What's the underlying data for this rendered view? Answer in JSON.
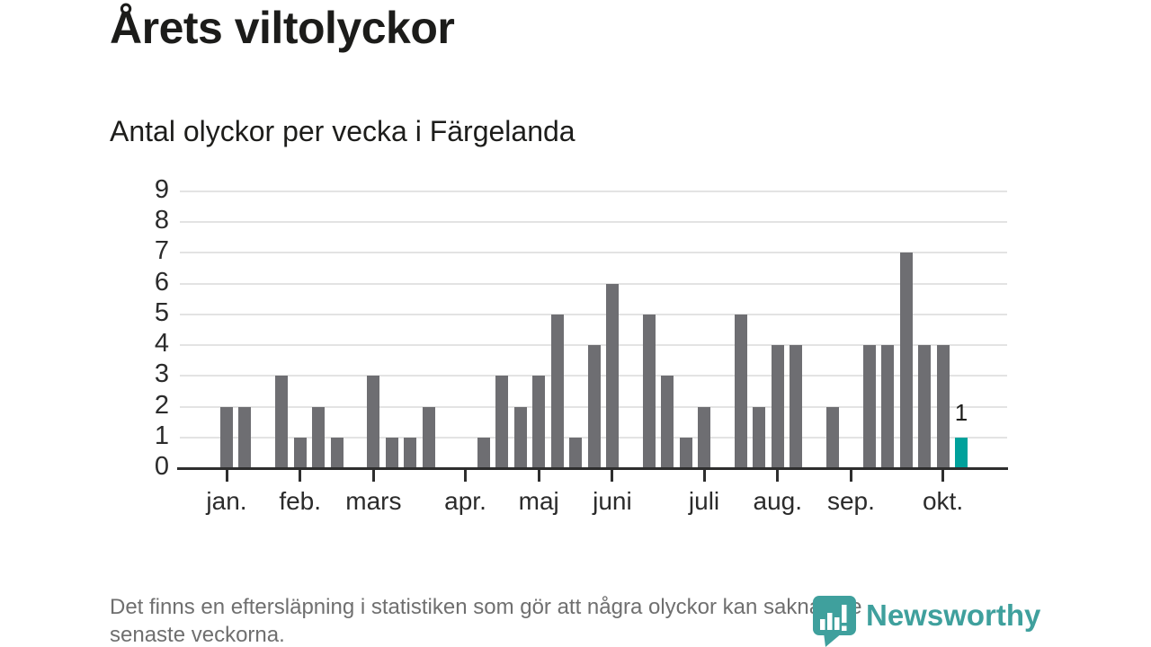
{
  "header": {
    "title": "Årets viltolyckor",
    "subtitle": "Antal olyckor per vecka i Färgelanda"
  },
  "chart_data": {
    "type": "bar",
    "title": "Årets viltolyckor",
    "subtitle": "Antal olyckor per vecka i Färgelanda",
    "xlabel": "",
    "ylabel": "",
    "ylim": [
      0,
      9
    ],
    "yticks": [
      "0",
      "1",
      "2",
      "3",
      "4",
      "5",
      "6",
      "7",
      "8",
      "9"
    ],
    "grid": true,
    "legend": "none",
    "values": [
      2,
      2,
      0,
      3,
      1,
      2,
      1,
      0,
      3,
      1,
      1,
      2,
      0,
      0,
      1,
      3,
      2,
      3,
      5,
      1,
      4,
      6,
      0,
      5,
      3,
      1,
      2,
      0,
      5,
      2,
      4,
      4,
      0,
      2,
      0,
      4,
      4,
      7,
      4,
      4,
      1
    ],
    "month_ticks": [
      {
        "label": "jan.",
        "week": 0
      },
      {
        "label": "feb.",
        "week": 4
      },
      {
        "label": "mars",
        "week": 8
      },
      {
        "label": "apr.",
        "week": 13
      },
      {
        "label": "maj",
        "week": 17
      },
      {
        "label": "juni",
        "week": 21
      },
      {
        "label": "juli",
        "week": 26
      },
      {
        "label": "aug.",
        "week": 30
      },
      {
        "label": "sep.",
        "week": 34
      },
      {
        "label": "okt.",
        "week": 39
      }
    ],
    "highlight_last_index": 40,
    "last_bar_label": "1",
    "colors": {
      "bar": "#6e6e72",
      "highlight": "#00a19b",
      "gridline": "#e3e3e3",
      "axis": "#2e2e2e"
    }
  },
  "footer": {
    "note": "Det finns en eftersläpning i statistiken som gör att några olyckor kan saknas de\nsenaste veckorna."
  },
  "branding": {
    "logo_text": "Newsworthy",
    "logo_color": "#3fa09d",
    "logo_icon": "newsworthy-map-pin-bar-chart"
  }
}
